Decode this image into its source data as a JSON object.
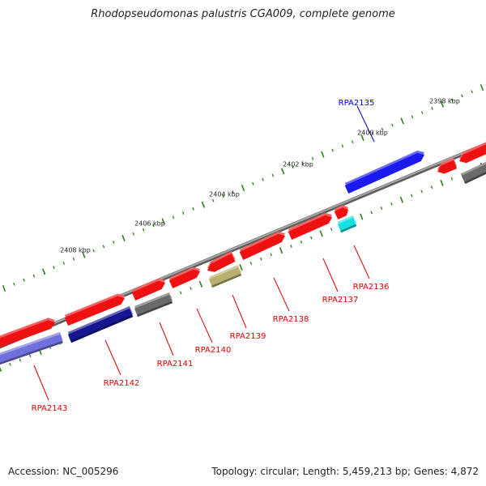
{
  "title": "Rhodopseudomonas palustris CGA009, complete genome",
  "accession": "Accession: NC_005296",
  "topology": "Topology: circular; Length: 5,459,213 bp; Genes: 4,872",
  "colors": {
    "backbone": "#808080",
    "tick": "#2e7d1e",
    "red": "#ee1111",
    "blue": "#1a1aee",
    "purple": "#7070dd",
    "darkblue": "#161690",
    "gray": "#6a6a6a",
    "khaki": "#b8b070",
    "cyan": "#16e0e0",
    "label_red": "#dd0000",
    "label_blue": "#0000cc"
  },
  "scale_labels": [
    "2398 kbp",
    "2400 kbp",
    "2402 kbp",
    "2404 kbp",
    "2406 kbp",
    "2408 kbp"
  ],
  "genes": [
    {
      "name": "RPA2135",
      "color": "blue"
    },
    {
      "name": "RPA2136",
      "color": "red"
    },
    {
      "name": "RPA2137",
      "color": "red"
    },
    {
      "name": "RPA2138",
      "color": "red"
    },
    {
      "name": "RPA2139",
      "color": "red"
    },
    {
      "name": "RPA2140",
      "color": "red"
    },
    {
      "name": "RPA2141",
      "color": "red"
    },
    {
      "name": "RPA2142",
      "color": "red"
    },
    {
      "name": "RPA2143",
      "color": "red"
    }
  ]
}
